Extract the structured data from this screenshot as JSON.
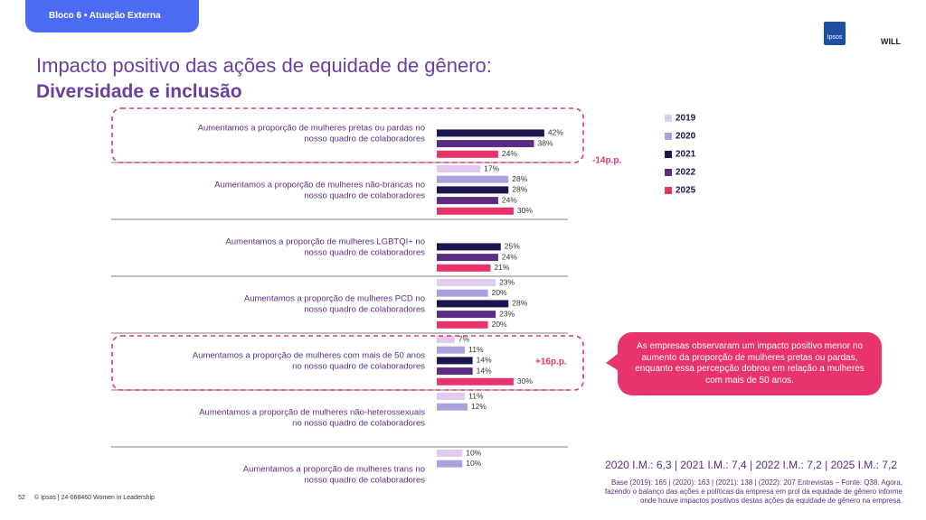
{
  "chart_data": {
    "type": "barh",
    "section": "Bloco 6 • Atuação Externa",
    "title": "Impacto positivo das ações de equidade de gênero:",
    "subtitle": "Diversidade e inclusão",
    "logos": [
      "Ipsos",
      "WILL"
    ],
    "categories": [
      "Aumentamos a proporção de mulheres pretas ou pardas no nosso quadro de colaboradores",
      "Aumentamos a proporção de mulheres não-brancas no nosso quadro de colaboradores",
      "Aumentamos a proporção de mulheres LGBTQI+ no nosso quadro de colaboradores",
      "Aumentamos a proporção de mulheres PCD no nosso quadro de colaboradores",
      "Aumentamos a proporção de mulheres com mais de 50 anos no nosso quadro de colaboradores",
      "Aumentamos a proporção de mulheres não-heterossexuais no nosso quadro de colaboradores",
      "Aumentamos a proporção de mulheres trans no nosso quadro de colaboradores"
    ],
    "series": [
      {
        "name": "2019",
        "color": "#e2cbec",
        "values": [
          null,
          17,
          null,
          23,
          7,
          11,
          10
        ],
        "value_labels": [
          null,
          "17%",
          null,
          "23%",
          "7%",
          "11%",
          "10%"
        ]
      },
      {
        "name": "2020",
        "color": "#aaa2de",
        "values": [
          null,
          28,
          null,
          20,
          11,
          12,
          10
        ],
        "value_labels": [
          null,
          "28%",
          null,
          "20%",
          "11%",
          "12%",
          "10%"
        ]
      },
      {
        "name": "2021",
        "color": "#1e1450",
        "values": [
          42,
          28,
          25,
          28,
          14,
          null,
          null
        ],
        "value_labels": [
          "42%",
          "28%",
          "25%",
          "28%",
          "14%",
          null,
          null
        ]
      },
      {
        "name": "2022",
        "color": "#5a2d82",
        "values": [
          38,
          24,
          24,
          23,
          14,
          null,
          null
        ],
        "value_labels": [
          "38%",
          "24%",
          "24%",
          "23%",
          "14%",
          null,
          null
        ]
      },
      {
        "name": "2025",
        "color": "#e8336b",
        "values": [
          24,
          30,
          21,
          20,
          30,
          null,
          null
        ],
        "value_labels": [
          "24%",
          "30%",
          "21%",
          "20%",
          "30%",
          null,
          null
        ]
      }
    ],
    "highlights": [
      {
        "category": 0,
        "label": "-14p.p."
      },
      {
        "category": 4,
        "label": "+16p.p."
      }
    ],
    "callout": "As empresas observaram um impacto positivo menor no aumento da proporção de mulheres pretas ou pardas, enquanto essa percepção dobrou em relação a mulheres com mais de 50 anos.",
    "index_note": "2020 I.M.: 6,3 | 2021 I.M.: 7,4 | 2022 I.M.: 7,2 | 2025 I.M.: 7,2",
    "base_note": "Base (2019): 165 | (2020): 163 | (2021): 138 | (2022): 207 Entrevistas – Fonte: Q38. Agora, fazendo o balanço das ações e políticas da empresa em prol da equidade de gênero informe onde houve impactos positivos destas ações da equidade de gênero na empresa.",
    "page": "52",
    "footer": "© Ipsos | 24-068460 Women in Leadership"
  }
}
